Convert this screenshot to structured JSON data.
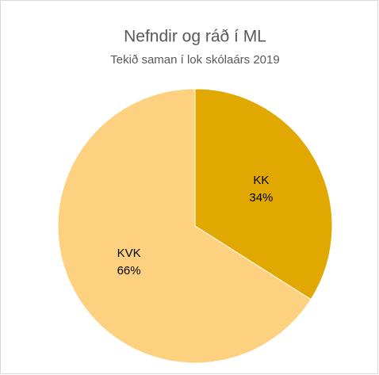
{
  "chart_data": {
    "type": "pie",
    "title": "Nefndir og ráð í ML",
    "subtitle": "Tekið saman í lok skólaárs 2019",
    "categories": [
      "KK",
      "KVK"
    ],
    "values": [
      34,
      66
    ],
    "value_labels": [
      "34%",
      "66%"
    ],
    "colors": [
      "#e0a800",
      "#fdd17f"
    ]
  }
}
